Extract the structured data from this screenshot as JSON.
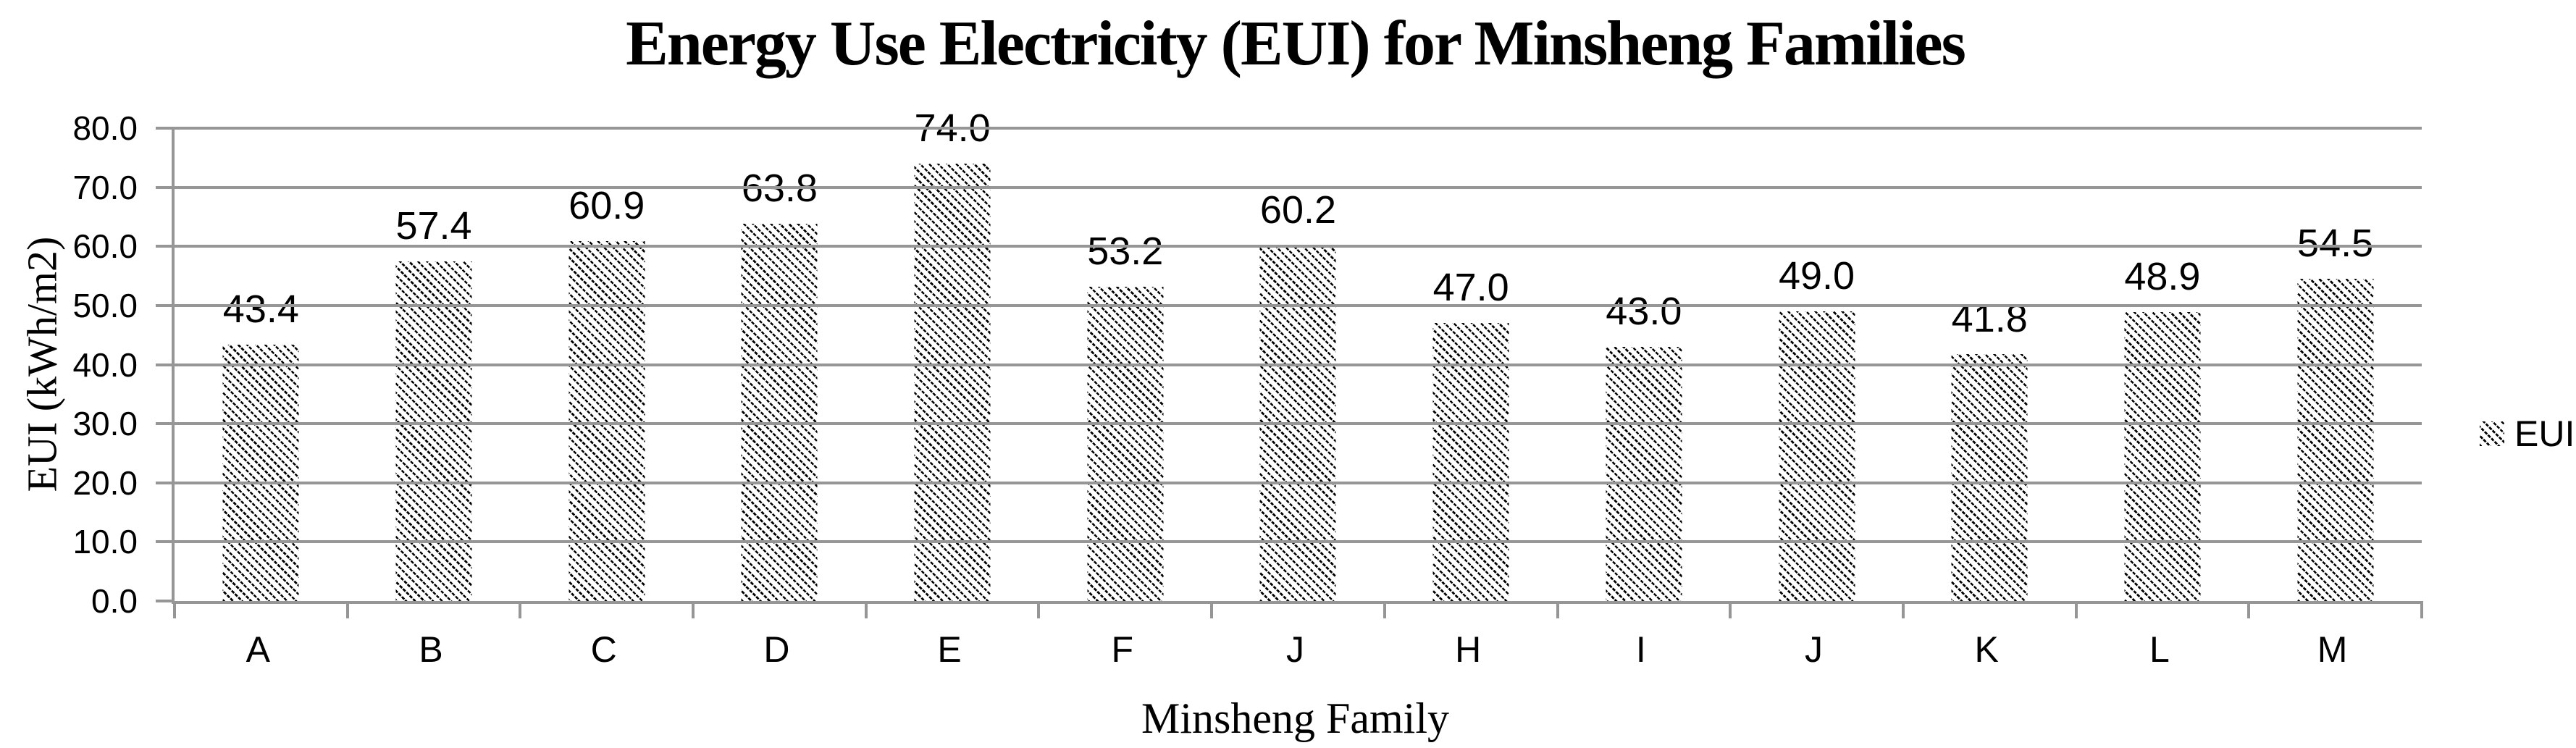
{
  "chart_data": {
    "type": "bar",
    "title": "Energy Use Electricity (EUI) for Minsheng Families",
    "xlabel": "Minsheng Family",
    "ylabel": "EUI (kWh/m2)",
    "categories": [
      "A",
      "B",
      "C",
      "D",
      "E",
      "F",
      "J",
      "H",
      "I",
      "J",
      "K",
      "L",
      "M"
    ],
    "values": [
      43.4,
      57.4,
      60.9,
      63.8,
      74.0,
      53.2,
      60.2,
      47.0,
      43.0,
      49.0,
      41.8,
      48.9,
      54.5
    ],
    "value_labels": [
      "43.4",
      "57.4",
      "60.9",
      "63.8",
      "74.0",
      "53.2",
      "60.2",
      "47.0",
      "43.0",
      "49.0",
      "41.8",
      "48.9",
      "54.5"
    ],
    "y_ticks": [
      "80.0",
      "70.0",
      "60.0",
      "50.0",
      "40.0",
      "30.0",
      "20.0",
      "10.0",
      "0.0"
    ],
    "ylim": [
      0,
      80
    ],
    "grid": "horizontal",
    "legend": {
      "label": "EUI",
      "position": "right",
      "marker": "diagonal-hatch-swatch"
    },
    "bar_style": "white fill with black diagonal dotted hatch",
    "colors": {
      "text": "#000000",
      "hatch": "#000000",
      "gridline": "#969696",
      "background": "#ffffff"
    }
  }
}
